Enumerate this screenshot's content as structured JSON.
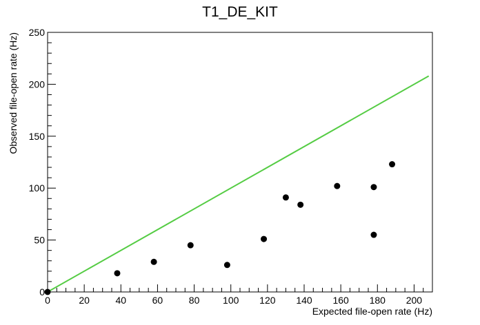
{
  "chart_data": {
    "type": "scatter",
    "title": "T1_DE_KIT",
    "xlabel": "Expected file-open rate (Hz)",
    "ylabel": "Observed file-open rate (Hz)",
    "xlim": [
      0,
      210
    ],
    "ylim": [
      0,
      250
    ],
    "x_ticks": [
      "0",
      "20",
      "40",
      "60",
      "80",
      "100",
      "120",
      "140",
      "160",
      "180",
      "200"
    ],
    "y_ticks": [
      "0",
      "50",
      "100",
      "150",
      "200",
      "250"
    ],
    "grid": false,
    "series": [
      {
        "points": [
          {
            "x": 0,
            "y": 0
          },
          {
            "x": 38,
            "y": 18
          },
          {
            "x": 58,
            "y": 29
          },
          {
            "x": 78,
            "y": 45
          },
          {
            "x": 98,
            "y": 26
          },
          {
            "x": 118,
            "y": 51
          },
          {
            "x": 130,
            "y": 91
          },
          {
            "x": 138,
            "y": 84
          },
          {
            "x": 158,
            "y": 102
          },
          {
            "x": 178,
            "y": 101
          },
          {
            "x": 178,
            "y": 55
          },
          {
            "x": 188,
            "y": 123
          }
        ],
        "color": "#000000"
      }
    ],
    "reference_line": {
      "x": [
        0,
        208
      ],
      "y": [
        0,
        208
      ],
      "color": "#55cc44"
    }
  }
}
